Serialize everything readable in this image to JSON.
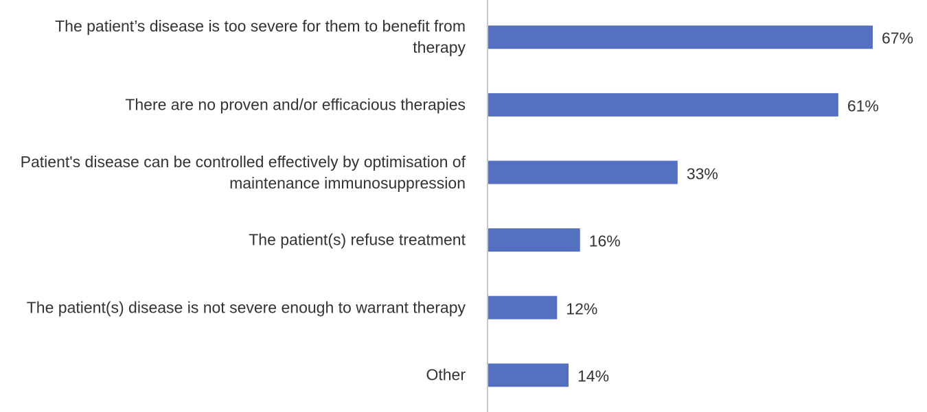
{
  "chart_data": {
    "type": "hbar",
    "categories": [
      "The patient’s disease is too severe for them to benefit from therapy",
      "There are no proven and/or efficacious therapies",
      "Patient's disease can be controlled effectively by optimisation of maintenance immunosuppression",
      "The patient(s) refuse treatment",
      "The patient(s) disease is not severe enough to warrant therapy",
      "Other"
    ],
    "values": [
      67,
      61,
      33,
      16,
      12,
      14
    ],
    "value_labels": [
      "67%",
      "61%",
      "33%",
      "16%",
      "12%",
      "14%"
    ],
    "color": "#5470c0"
  }
}
